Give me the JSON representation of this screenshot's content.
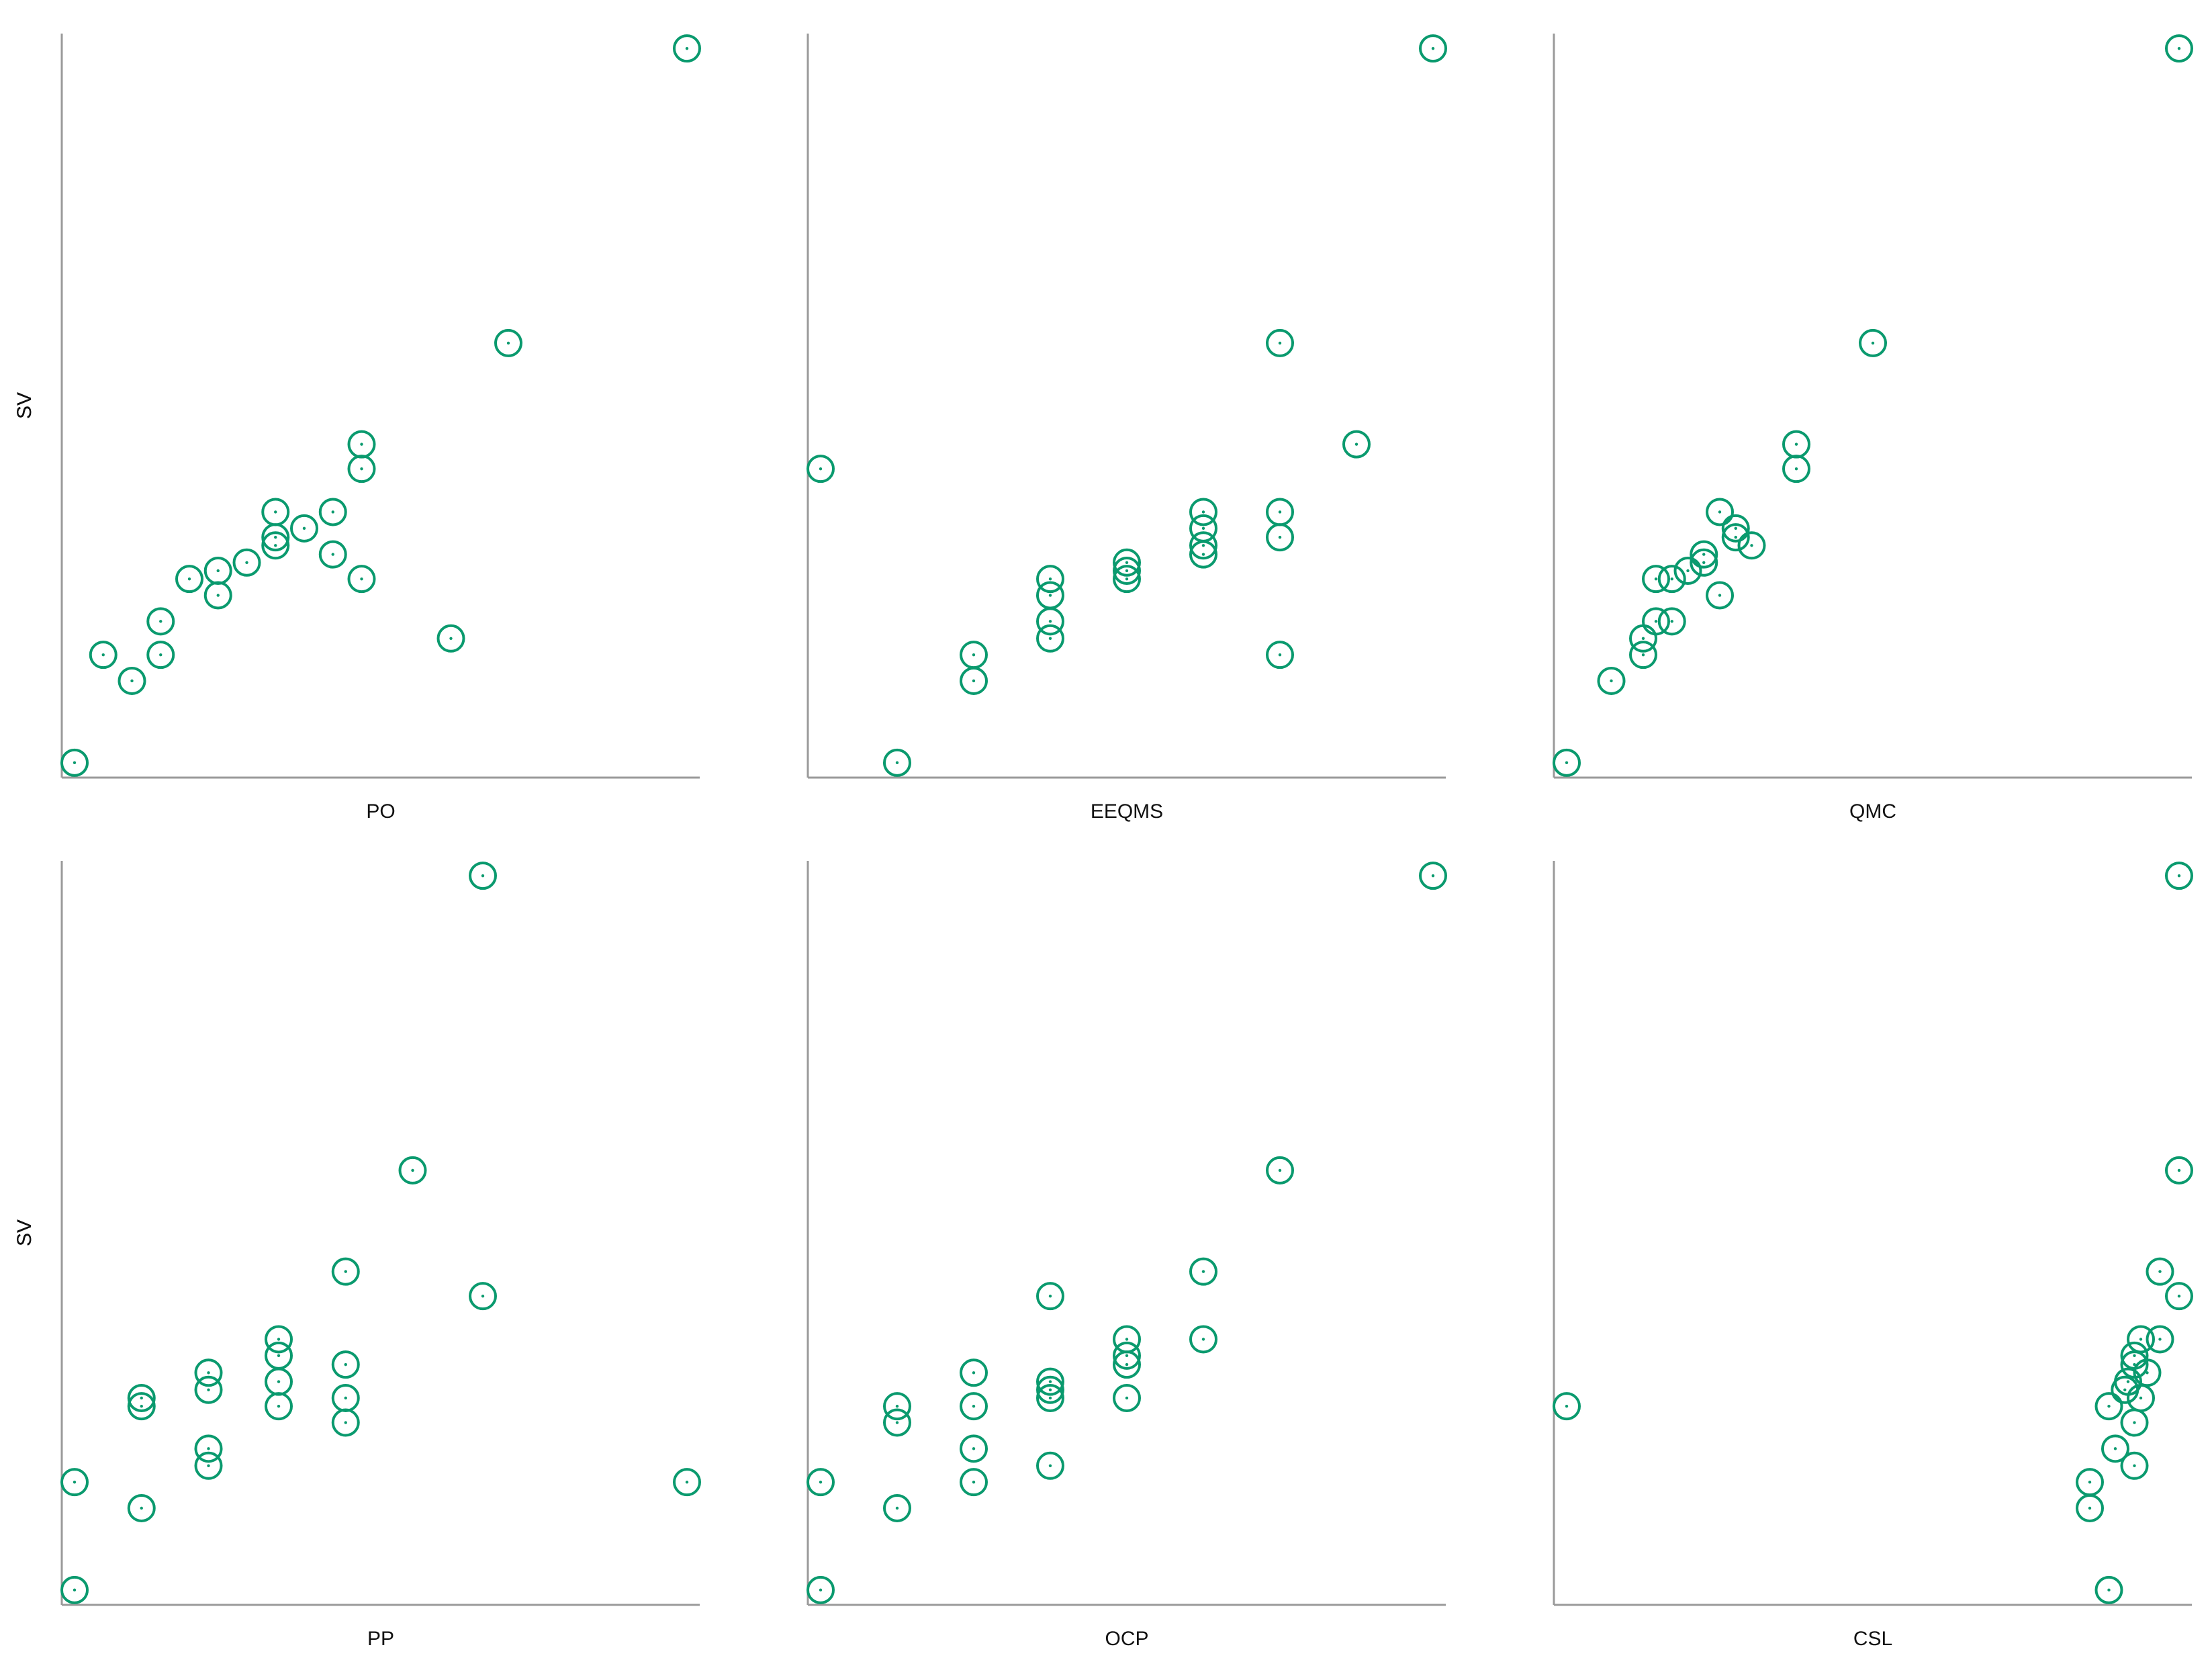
{
  "style": {
    "marker_color": "#0a9a6e",
    "axis_color": "#9a9a9a",
    "marker": "open-circle-with-center-dot"
  },
  "chart_data": [
    {
      "type": "scatter",
      "title": "",
      "xlabel": "PO",
      "ylabel": "SV",
      "grid": false,
      "xlim": [
        0,
        1
      ],
      "ylim": [
        0,
        1
      ],
      "points": [
        {
          "x": 0.02,
          "y": 0.02
        },
        {
          "x": 0.065,
          "y": 0.165
        },
        {
          "x": 0.11,
          "y": 0.13
        },
        {
          "x": 0.155,
          "y": 0.165
        },
        {
          "x": 0.155,
          "y": 0.21
        },
        {
          "x": 0.2,
          "y": 0.267
        },
        {
          "x": 0.245,
          "y": 0.278
        },
        {
          "x": 0.245,
          "y": 0.245
        },
        {
          "x": 0.29,
          "y": 0.289
        },
        {
          "x": 0.335,
          "y": 0.312
        },
        {
          "x": 0.335,
          "y": 0.323
        },
        {
          "x": 0.335,
          "y": 0.357
        },
        {
          "x": 0.38,
          "y": 0.335
        },
        {
          "x": 0.425,
          "y": 0.357
        },
        {
          "x": 0.425,
          "y": 0.3
        },
        {
          "x": 0.47,
          "y": 0.267
        },
        {
          "x": 0.47,
          "y": 0.415
        },
        {
          "x": 0.47,
          "y": 0.448
        },
        {
          "x": 0.61,
          "y": 0.187
        },
        {
          "x": 0.7,
          "y": 0.584
        },
        {
          "x": 0.98,
          "y": 0.98
        }
      ]
    },
    {
      "type": "scatter",
      "title": "",
      "xlabel": "EEQMS",
      "ylabel": "SV",
      "grid": false,
      "xlim": [
        0,
        1
      ],
      "ylim": [
        0,
        1
      ],
      "points": [
        {
          "x": 0.02,
          "y": 0.415
        },
        {
          "x": 0.14,
          "y": 0.02
        },
        {
          "x": 0.26,
          "y": 0.13
        },
        {
          "x": 0.26,
          "y": 0.165
        },
        {
          "x": 0.38,
          "y": 0.187
        },
        {
          "x": 0.38,
          "y": 0.21
        },
        {
          "x": 0.38,
          "y": 0.245
        },
        {
          "x": 0.38,
          "y": 0.267
        },
        {
          "x": 0.5,
          "y": 0.267
        },
        {
          "x": 0.5,
          "y": 0.278
        },
        {
          "x": 0.5,
          "y": 0.289
        },
        {
          "x": 0.62,
          "y": 0.3
        },
        {
          "x": 0.62,
          "y": 0.312
        },
        {
          "x": 0.62,
          "y": 0.335
        },
        {
          "x": 0.62,
          "y": 0.357
        },
        {
          "x": 0.74,
          "y": 0.165
        },
        {
          "x": 0.74,
          "y": 0.323
        },
        {
          "x": 0.74,
          "y": 0.357
        },
        {
          "x": 0.74,
          "y": 0.584
        },
        {
          "x": 0.86,
          "y": 0.448
        },
        {
          "x": 0.98,
          "y": 0.98
        }
      ]
    },
    {
      "type": "scatter",
      "title": "",
      "xlabel": "QMC",
      "ylabel": "SV",
      "grid": false,
      "xlim": [
        0,
        1
      ],
      "ylim": [
        0,
        1
      ],
      "points": [
        {
          "x": 0.02,
          "y": 0.02
        },
        {
          "x": 0.09,
          "y": 0.13
        },
        {
          "x": 0.14,
          "y": 0.165
        },
        {
          "x": 0.14,
          "y": 0.187
        },
        {
          "x": 0.16,
          "y": 0.21
        },
        {
          "x": 0.16,
          "y": 0.267
        },
        {
          "x": 0.185,
          "y": 0.21
        },
        {
          "x": 0.185,
          "y": 0.267
        },
        {
          "x": 0.21,
          "y": 0.278
        },
        {
          "x": 0.235,
          "y": 0.289
        },
        {
          "x": 0.235,
          "y": 0.3
        },
        {
          "x": 0.26,
          "y": 0.245
        },
        {
          "x": 0.26,
          "y": 0.357
        },
        {
          "x": 0.285,
          "y": 0.323
        },
        {
          "x": 0.285,
          "y": 0.335
        },
        {
          "x": 0.31,
          "y": 0.312
        },
        {
          "x": 0.38,
          "y": 0.415
        },
        {
          "x": 0.38,
          "y": 0.448
        },
        {
          "x": 0.5,
          "y": 0.584
        },
        {
          "x": 0.98,
          "y": 0.98
        }
      ]
    },
    {
      "type": "scatter",
      "title": "",
      "xlabel": "PP",
      "ylabel": "SV",
      "grid": false,
      "xlim": [
        0,
        1
      ],
      "ylim": [
        0,
        1
      ],
      "points": [
        {
          "x": 0.02,
          "y": 0.02
        },
        {
          "x": 0.02,
          "y": 0.165
        },
        {
          "x": 0.125,
          "y": 0.13
        },
        {
          "x": 0.125,
          "y": 0.267
        },
        {
          "x": 0.125,
          "y": 0.278
        },
        {
          "x": 0.23,
          "y": 0.187
        },
        {
          "x": 0.23,
          "y": 0.21
        },
        {
          "x": 0.23,
          "y": 0.289
        },
        {
          "x": 0.23,
          "y": 0.312
        },
        {
          "x": 0.34,
          "y": 0.267
        },
        {
          "x": 0.34,
          "y": 0.3
        },
        {
          "x": 0.34,
          "y": 0.335
        },
        {
          "x": 0.34,
          "y": 0.357
        },
        {
          "x": 0.445,
          "y": 0.245
        },
        {
          "x": 0.445,
          "y": 0.278
        },
        {
          "x": 0.445,
          "y": 0.323
        },
        {
          "x": 0.445,
          "y": 0.448
        },
        {
          "x": 0.55,
          "y": 0.584
        },
        {
          "x": 0.66,
          "y": 0.415
        },
        {
          "x": 0.66,
          "y": 0.98
        },
        {
          "x": 0.98,
          "y": 0.165
        }
      ]
    },
    {
      "type": "scatter",
      "title": "",
      "xlabel": "OCP",
      "ylabel": "SV",
      "grid": false,
      "xlim": [
        0,
        1
      ],
      "ylim": [
        0,
        1
      ],
      "points": [
        {
          "x": 0.02,
          "y": 0.02
        },
        {
          "x": 0.02,
          "y": 0.165
        },
        {
          "x": 0.14,
          "y": 0.13
        },
        {
          "x": 0.14,
          "y": 0.245
        },
        {
          "x": 0.14,
          "y": 0.267
        },
        {
          "x": 0.26,
          "y": 0.165
        },
        {
          "x": 0.26,
          "y": 0.21
        },
        {
          "x": 0.26,
          "y": 0.267
        },
        {
          "x": 0.26,
          "y": 0.312
        },
        {
          "x": 0.38,
          "y": 0.187
        },
        {
          "x": 0.38,
          "y": 0.278
        },
        {
          "x": 0.38,
          "y": 0.289
        },
        {
          "x": 0.38,
          "y": 0.3
        },
        {
          "x": 0.38,
          "y": 0.415
        },
        {
          "x": 0.5,
          "y": 0.278
        },
        {
          "x": 0.5,
          "y": 0.323
        },
        {
          "x": 0.5,
          "y": 0.335
        },
        {
          "x": 0.5,
          "y": 0.357
        },
        {
          "x": 0.62,
          "y": 0.357
        },
        {
          "x": 0.62,
          "y": 0.448
        },
        {
          "x": 0.74,
          "y": 0.584
        },
        {
          "x": 0.98,
          "y": 0.98
        }
      ]
    },
    {
      "type": "scatter",
      "title": "",
      "xlabel": "CSL",
      "ylabel": "SV",
      "grid": false,
      "xlim": [
        0,
        1
      ],
      "ylim": [
        0,
        1
      ],
      "points": [
        {
          "x": 0.02,
          "y": 0.267
        },
        {
          "x": 0.84,
          "y": 0.13
        },
        {
          "x": 0.84,
          "y": 0.165
        },
        {
          "x": 0.87,
          "y": 0.02
        },
        {
          "x": 0.87,
          "y": 0.267
        },
        {
          "x": 0.88,
          "y": 0.21
        },
        {
          "x": 0.895,
          "y": 0.289
        },
        {
          "x": 0.9,
          "y": 0.3
        },
        {
          "x": 0.91,
          "y": 0.187
        },
        {
          "x": 0.91,
          "y": 0.245
        },
        {
          "x": 0.91,
          "y": 0.323
        },
        {
          "x": 0.91,
          "y": 0.335
        },
        {
          "x": 0.92,
          "y": 0.278
        },
        {
          "x": 0.92,
          "y": 0.357
        },
        {
          "x": 0.93,
          "y": 0.312
        },
        {
          "x": 0.95,
          "y": 0.357
        },
        {
          "x": 0.95,
          "y": 0.448
        },
        {
          "x": 0.98,
          "y": 0.415
        },
        {
          "x": 0.98,
          "y": 0.584
        },
        {
          "x": 0.98,
          "y": 0.98
        }
      ]
    }
  ]
}
